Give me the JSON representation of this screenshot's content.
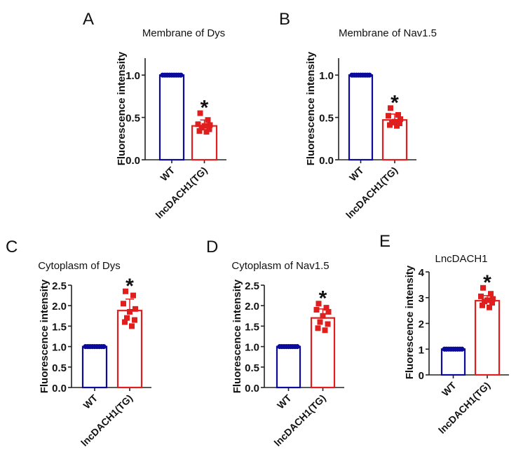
{
  "figure": {
    "colors": {
      "wt": "#0a0a9c",
      "tg": "#e01e1e",
      "axis": "#222222",
      "text": "#111111"
    }
  },
  "chart_data": [
    {
      "panel": "A",
      "type": "bar",
      "title": "Membrane of Dys",
      "xlabel": "",
      "ylabel": "Fluorescence intensity",
      "ylim": [
        0,
        1.2
      ],
      "yticks": [
        "0.0",
        "0.5",
        "1.0"
      ],
      "ytick_values": [
        0,
        0.5,
        1.0
      ],
      "categories": [
        "WT",
        "lncDACH1(TG)"
      ],
      "values": [
        1.0,
        0.4
      ],
      "error": [
        0,
        0.07
      ],
      "points": [
        [
          1.0,
          1.0,
          1.0,
          1.0,
          1.0,
          1.0,
          1.0,
          1.0,
          1.0
        ],
        [
          0.55,
          0.47,
          0.42,
          0.41,
          0.4,
          0.38,
          0.36,
          0.34,
          0.33
        ]
      ],
      "significance": "*",
      "grid": false
    },
    {
      "panel": "B",
      "type": "bar",
      "title": "Membrane of Nav1.5",
      "xlabel": "",
      "ylabel": "Fluorescence intensity",
      "ylim": [
        0,
        1.2
      ],
      "yticks": [
        "0.0",
        "0.5",
        "1.0"
      ],
      "ytick_values": [
        0,
        0.5,
        1.0
      ],
      "categories": [
        "WT",
        "lncDACH1(TG)"
      ],
      "values": [
        1.0,
        0.47
      ],
      "error": [
        0,
        0.07
      ],
      "points": [
        [
          1.0,
          1.0,
          1.0,
          1.0,
          1.0,
          1.0,
          1.0,
          1.0,
          1.0
        ],
        [
          0.61,
          0.53,
          0.52,
          0.48,
          0.45,
          0.44,
          0.43,
          0.41,
          0.4
        ]
      ],
      "significance": "*",
      "grid": false
    },
    {
      "panel": "C",
      "type": "bar",
      "title": "Cytoplasm of Dys",
      "xlabel": "",
      "ylabel": "Fluorescence intensity",
      "ylim": [
        0,
        2.5
      ],
      "yticks": [
        "0.0",
        "0.5",
        "1.0",
        "1.5",
        "2.0",
        "2.5"
      ],
      "ytick_values": [
        0,
        0.5,
        1.0,
        1.5,
        2.0,
        2.5
      ],
      "categories": [
        "WT",
        "lncDACH1(TG)"
      ],
      "values": [
        1.0,
        1.88
      ],
      "error": [
        0,
        0.28
      ],
      "points": [
        [
          1.0,
          1.0,
          1.0,
          1.0,
          1.0,
          1.0,
          1.0,
          1.0,
          1.0
        ],
        [
          2.35,
          2.25,
          2.05,
          1.92,
          1.85,
          1.7,
          1.65,
          1.6,
          1.5
        ]
      ],
      "significance": "*",
      "grid": false
    },
    {
      "panel": "D",
      "type": "bar",
      "title": "Cytoplasm of Nav1.5",
      "xlabel": "",
      "ylabel": "Fluorescence intensity",
      "ylim": [
        0,
        2.5
      ],
      "yticks": [
        "0.0",
        "0.5",
        "1.0",
        "1.5",
        "2.0",
        "2.5"
      ],
      "ytick_values": [
        0,
        0.5,
        1.0,
        1.5,
        2.0,
        2.5
      ],
      "categories": [
        "WT",
        "lncDACH1(TG)"
      ],
      "values": [
        1.0,
        1.7
      ],
      "error": [
        0,
        0.22
      ],
      "points": [
        [
          1.0,
          1.0,
          1.0,
          1.0,
          1.0,
          1.0,
          1.0,
          1.0,
          1.0
        ],
        [
          2.05,
          1.95,
          1.9,
          1.85,
          1.75,
          1.6,
          1.55,
          1.45,
          1.4
        ]
      ],
      "significance": "*",
      "grid": false
    },
    {
      "panel": "E",
      "type": "bar",
      "title": "LncDACH1",
      "xlabel": "",
      "ylabel": "Fluorescence intensity",
      "ylim": [
        0,
        4
      ],
      "yticks": [
        "0",
        "1",
        "2",
        "3",
        "4"
      ],
      "ytick_values": [
        0,
        1,
        2,
        3,
        4
      ],
      "categories": [
        "WT",
        "lncDACH1(TG)"
      ],
      "values": [
        1.0,
        2.88
      ],
      "error": [
        0,
        0.2
      ],
      "points": [
        [
          1.0,
          1.0,
          1.0,
          1.0,
          1.0,
          1.0,
          1.0,
          1.0,
          1.0
        ],
        [
          3.38,
          3.15,
          3.05,
          2.95,
          2.9,
          2.85,
          2.8,
          2.7,
          2.62
        ]
      ],
      "significance": "*",
      "grid": false
    }
  ]
}
